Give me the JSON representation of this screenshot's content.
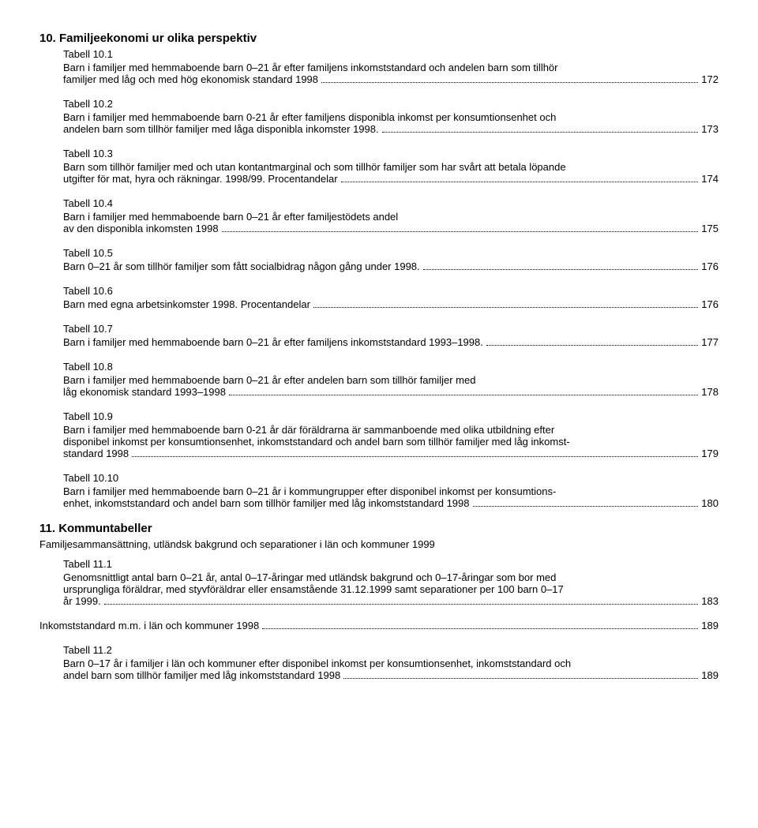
{
  "section10": {
    "title": "10. Familjeekonomi ur olika perspektiv",
    "items": [
      {
        "label": "Tabell 10.1",
        "desc": "Barn i familjer med hemmaboende barn 0–21 år efter familjens inkomststandard och andelen barn som tillhör familjer med låg och med hög ekonomisk standard 1998",
        "page": "172"
      },
      {
        "label": "Tabell 10.2",
        "desc": "Barn i familjer med hemmaboende barn 0-21 år efter familjens disponibla inkomst per konsumtionsenhet och andelen barn som tillhör familjer med låga disponibla inkomster 1998.",
        "page": "173"
      },
      {
        "label": "Tabell 10.3",
        "desc": "Barn som tillhör familjer med och utan kontantmarginal och som tillhör familjer som har svårt att betala löpande utgifter för mat, hyra och räkningar. 1998/99. Procentandelar",
        "page": "174"
      },
      {
        "label": "Tabell 10.4",
        "desc": "Barn i familjer med hemmaboende barn 0–21 år efter familjestödets andel av den disponibla inkomsten 1998",
        "page": "175"
      },
      {
        "label": "Tabell 10.5",
        "desc": "Barn 0–21 år som tillhör familjer som fått socialbidrag någon gång under 1998.",
        "page": "176"
      },
      {
        "label": "Tabell 10.6",
        "desc": "Barn med egna arbetsinkomster 1998. Procentandelar",
        "page": "176"
      },
      {
        "label": "Tabell 10.7",
        "desc": "Barn i familjer med hemmaboende barn 0–21 år efter familjens inkomststandard 1993–1998.",
        "page": "177"
      },
      {
        "label": "Tabell 10.8",
        "desc": "Barn i familjer med hemmaboende barn 0–21 år efter andelen barn som tillhör familjer med låg ekonomisk standard 1993–1998",
        "page": "178"
      },
      {
        "label": "Tabell 10.9",
        "desc": "Barn i familjer med hemmaboende barn 0-21 år där föräldrarna är sammanboende med olika utbildning efter disponibel inkomst per konsumtionsenhet, inkomststandard och andel barn som tillhör familjer med låg inkomst-standard 1998",
        "page": "179"
      },
      {
        "label": "Tabell 10.10",
        "desc": "Barn i familjer med hemmaboende barn 0–21 år i kommungrupper efter disponibel inkomst per konsumtions-enhet, inkomststandard och andel barn som tillhör familjer med låg inkomststandard 1998",
        "page": "180"
      }
    ]
  },
  "section11": {
    "title": "11. Kommuntabeller",
    "subheading": "Familjesammansättning, utländsk bakgrund och separationer i län och kommuner 1999",
    "item1": {
      "label": "Tabell 11.1",
      "desc": "Genomsnittligt antal barn 0–21 år, antal 0–17-åringar med utländsk bakgrund och 0–17-åringar som bor med ursprungliga föräldrar, med styvföräldrar eller ensamstående 31.12.1999 samt separationer per 100 barn 0–17 år 1999.",
      "page": "183"
    },
    "mid": {
      "desc": "Inkomststandard m.m. i län och kommuner 1998",
      "page": "189"
    },
    "item2": {
      "label": "Tabell 11.2",
      "desc": "Barn 0–17 år i familjer i län och kommuner efter disponibel inkomst per konsumtionsenhet, inkomststandard och andel barn som tillhör familjer med låg inkomststandard 1998",
      "page": "189"
    }
  }
}
